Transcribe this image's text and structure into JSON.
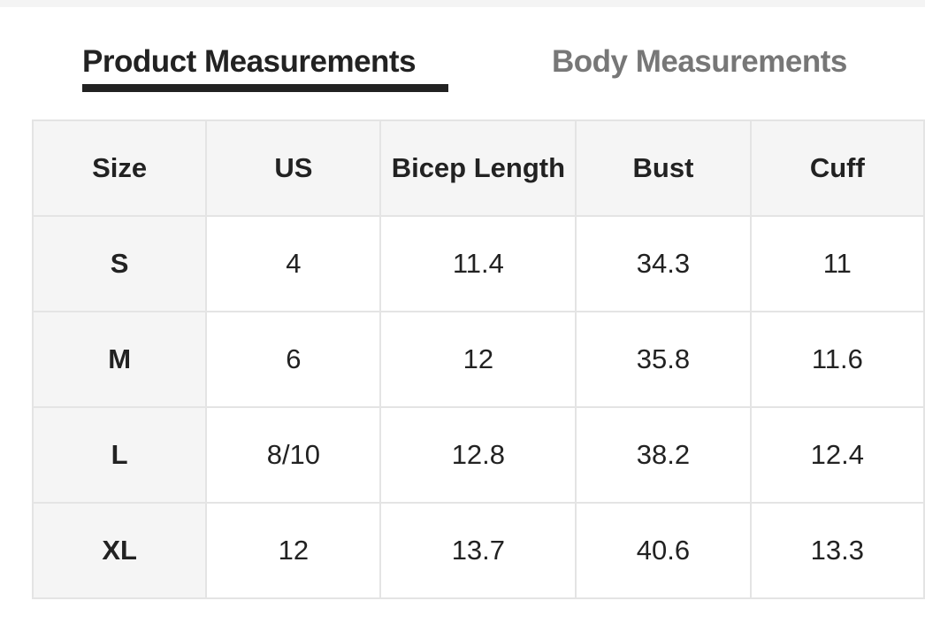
{
  "tabs": [
    {
      "label": "Product Measurements",
      "active": true
    },
    {
      "label": "Body Measurements",
      "active": false
    }
  ],
  "table": {
    "headers": [
      "Size",
      "US",
      "Bicep Length",
      "Bust",
      "Cuff"
    ],
    "rows": [
      [
        "S",
        "4",
        "11.4",
        "34.3",
        "11"
      ],
      [
        "M",
        "6",
        "12",
        "35.8",
        "11.6"
      ],
      [
        "L",
        "8/10",
        "12.8",
        "38.2",
        "12.4"
      ],
      [
        "XL",
        "12",
        "13.7",
        "40.6",
        "13.3"
      ]
    ]
  }
}
